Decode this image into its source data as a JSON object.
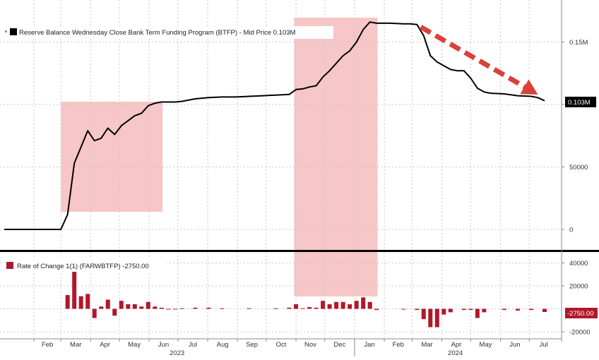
{
  "colors": {
    "background": "#ffffff",
    "main_line": "#000000",
    "shade": "#f7c6c6",
    "bar": "#b0182a",
    "arrow": "#d9413a",
    "grid": "#c8c8c8",
    "divider": "#000000"
  },
  "chart_data": [
    {
      "type": "line",
      "legend": "Reserve Balance Wednesday Close Bank Term Funding Program (BTFP) - Mid Price 0.103M",
      "last_value_label": "0.103M",
      "y_ticks": [
        "0",
        "50000",
        "0.1M",
        "0.15M"
      ],
      "y_tick_values": [
        0,
        50000,
        100000,
        150000
      ],
      "ylim": [
        -20000,
        180000
      ],
      "x_range": [
        "2023-01-01",
        "2024-07-31"
      ],
      "grid": true,
      "legend_position": "top-left",
      "shaded_periods": [
        {
          "start": "2023-03-01",
          "end": "2023-06-15"
        },
        {
          "start": "2023-10-30",
          "end": "2024-01-25"
        }
      ],
      "trend_arrow": {
        "from": [
          "2024-03-10",
          162000
        ],
        "to": [
          "2024-07-10",
          108000
        ]
      },
      "x": [
        "2023-01-01",
        "2023-03-01",
        "2023-03-08",
        "2023-03-15",
        "2023-03-22",
        "2023-03-29",
        "2023-04-05",
        "2023-04-12",
        "2023-04-19",
        "2023-04-26",
        "2023-05-03",
        "2023-05-10",
        "2023-05-17",
        "2023-05-24",
        "2023-05-31",
        "2023-06-07",
        "2023-06-14",
        "2023-06-21",
        "2023-06-28",
        "2023-07-05",
        "2023-07-19",
        "2023-08-02",
        "2023-08-16",
        "2023-08-30",
        "2023-09-13",
        "2023-09-27",
        "2023-10-11",
        "2023-10-25",
        "2023-11-01",
        "2023-11-08",
        "2023-11-15",
        "2023-11-22",
        "2023-11-29",
        "2023-12-06",
        "2023-12-13",
        "2023-12-20",
        "2023-12-27",
        "2024-01-03",
        "2024-01-10",
        "2024-01-17",
        "2024-01-24",
        "2024-02-07",
        "2024-02-21",
        "2024-02-28",
        "2024-03-06",
        "2024-03-13",
        "2024-03-20",
        "2024-03-27",
        "2024-04-03",
        "2024-04-10",
        "2024-04-17",
        "2024-04-24",
        "2024-05-01",
        "2024-05-08",
        "2024-05-15",
        "2024-05-22",
        "2024-06-05",
        "2024-06-19",
        "2024-07-03",
        "2024-07-10",
        "2024-07-17"
      ],
      "values": [
        0,
        0,
        12000,
        53000,
        66000,
        79000,
        71000,
        73000,
        81000,
        76000,
        83000,
        87000,
        91000,
        93000,
        99000,
        101000,
        102000,
        102000,
        102000,
        102500,
        104500,
        105500,
        106000,
        106000,
        106500,
        107000,
        107500,
        108000,
        112000,
        112500,
        114000,
        115000,
        122000,
        127000,
        133000,
        139000,
        143000,
        150000,
        160000,
        166000,
        165000,
        165000,
        164500,
        164500,
        164000,
        155000,
        139000,
        134000,
        131000,
        128000,
        127000,
        127000,
        121000,
        113000,
        110000,
        109000,
        108500,
        107000,
        106500,
        105500,
        103000
      ]
    },
    {
      "type": "bar",
      "legend": "Rate of Change 1(1) (FARWBTFP) -2750.00",
      "last_value_label": "-2750.00",
      "y_ticks": [
        "-20000",
        "0",
        "20000",
        "40000"
      ],
      "y_tick_values": [
        -20000,
        0,
        20000,
        40000
      ],
      "ylim": [
        -25000,
        48000
      ],
      "x_axis_months": [
        "Feb",
        "Mar",
        "Apr",
        "May",
        "Jun",
        "Jul",
        "Aug",
        "Sep",
        "Oct",
        "Nov",
        "Dec",
        "Jan",
        "Feb",
        "Mar",
        "Apr",
        "May",
        "Jun",
        "Jul"
      ],
      "x_axis_years": [
        "2023",
        "2024"
      ],
      "x": [
        "2023-03-08",
        "2023-03-15",
        "2023-03-22",
        "2023-03-29",
        "2023-04-05",
        "2023-04-12",
        "2023-04-19",
        "2023-04-26",
        "2023-05-03",
        "2023-05-10",
        "2023-05-17",
        "2023-05-24",
        "2023-05-31",
        "2023-06-07",
        "2023-06-14",
        "2023-06-21",
        "2023-06-28",
        "2023-07-05",
        "2023-07-19",
        "2023-08-02",
        "2023-08-16",
        "2023-09-13",
        "2023-10-11",
        "2023-10-25",
        "2023-11-01",
        "2023-11-08",
        "2023-11-15",
        "2023-11-22",
        "2023-11-29",
        "2023-12-06",
        "2023-12-13",
        "2023-12-20",
        "2023-12-27",
        "2024-01-03",
        "2024-01-10",
        "2024-01-17",
        "2024-01-24",
        "2024-02-21",
        "2024-03-06",
        "2024-03-13",
        "2024-03-20",
        "2024-03-27",
        "2024-04-03",
        "2024-04-10",
        "2024-04-24",
        "2024-05-01",
        "2024-05-08",
        "2024-05-15",
        "2024-06-05",
        "2024-06-19",
        "2024-07-03",
        "2024-07-17"
      ],
      "values": [
        12000,
        41000,
        11000,
        13000,
        -8000,
        2000,
        8000,
        -6000,
        7000,
        4000,
        4000,
        2000,
        6000,
        2000,
        1000,
        0,
        0,
        500,
        1000,
        1000,
        500,
        500,
        500,
        1000,
        4000,
        500,
        1500,
        1000,
        7000,
        4000,
        6000,
        6000,
        4000,
        7000,
        10000,
        6000,
        -1000,
        0,
        -1000,
        -9000,
        -16000,
        -16000,
        -5000,
        -3000,
        -1000,
        -1000,
        -8000,
        -3000,
        -1000,
        -1500,
        -1000,
        -2750
      ]
    }
  ]
}
